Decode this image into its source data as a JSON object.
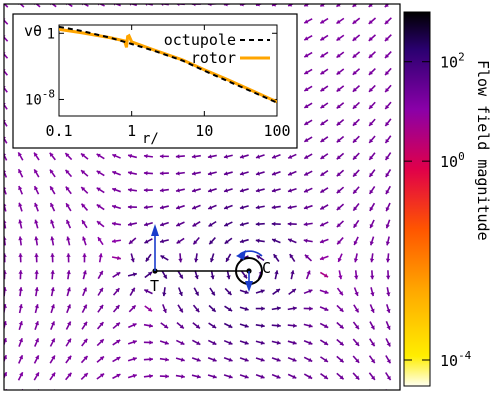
{
  "chart_data": [
    {
      "type": "vector-field",
      "colorbar": {
        "label": "Flow field magnitude",
        "scale": "log",
        "range": [
          3e-05,
          1000
        ],
        "tick_labels": [
          "10^-4",
          "10^0",
          "10^2"
        ],
        "tick_values": [
          0.0001,
          1,
          100
        ],
        "colormap": "yellow-orange-red-purple-black"
      },
      "points": [
        {
          "id": "T",
          "label": "T",
          "x": -1.0,
          "y": 0.0
        },
        {
          "id": "C",
          "label": "C",
          "x": 1.0,
          "y": 0.0
        }
      ],
      "grid": false
    },
    {
      "type": "line",
      "xscale": "log",
      "yscale": "log",
      "xlabel": "r/",
      "ylabel": "vθ",
      "xlim": [
        0.1,
        100
      ],
      "ylim": [
        1e-10,
        10
      ],
      "x_tick_labels": [
        "0.1",
        "1",
        "10",
        "100"
      ],
      "y_tick_labels": [
        "1",
        "10^-8"
      ],
      "legend": "top-right",
      "series": [
        {
          "name": "octupole",
          "style": "dashed",
          "color": "#000000",
          "x": [
            0.1,
            0.2,
            0.5,
            1,
            2,
            5,
            10,
            20,
            50,
            100
          ],
          "y": [
            6,
            2,
            0.3,
            0.05,
            0.008,
            0.0005,
            3e-05,
            2e-06,
            6e-08,
            4e-09
          ]
        },
        {
          "name": "rotor",
          "style": "solid",
          "color": "#FFA500",
          "x": [
            0.1,
            0.2,
            0.5,
            0.8,
            0.85,
            0.88,
            0.92,
            1,
            2,
            5,
            10,
            20,
            50,
            100
          ],
          "y": [
            3,
            1.2,
            0.3,
            0.12,
            0.02,
            0.4,
            0.5,
            0.09,
            0.01,
            0.0006,
            4e-05,
            3e-06,
            8e-08,
            5e-09
          ]
        }
      ]
    }
  ]
}
